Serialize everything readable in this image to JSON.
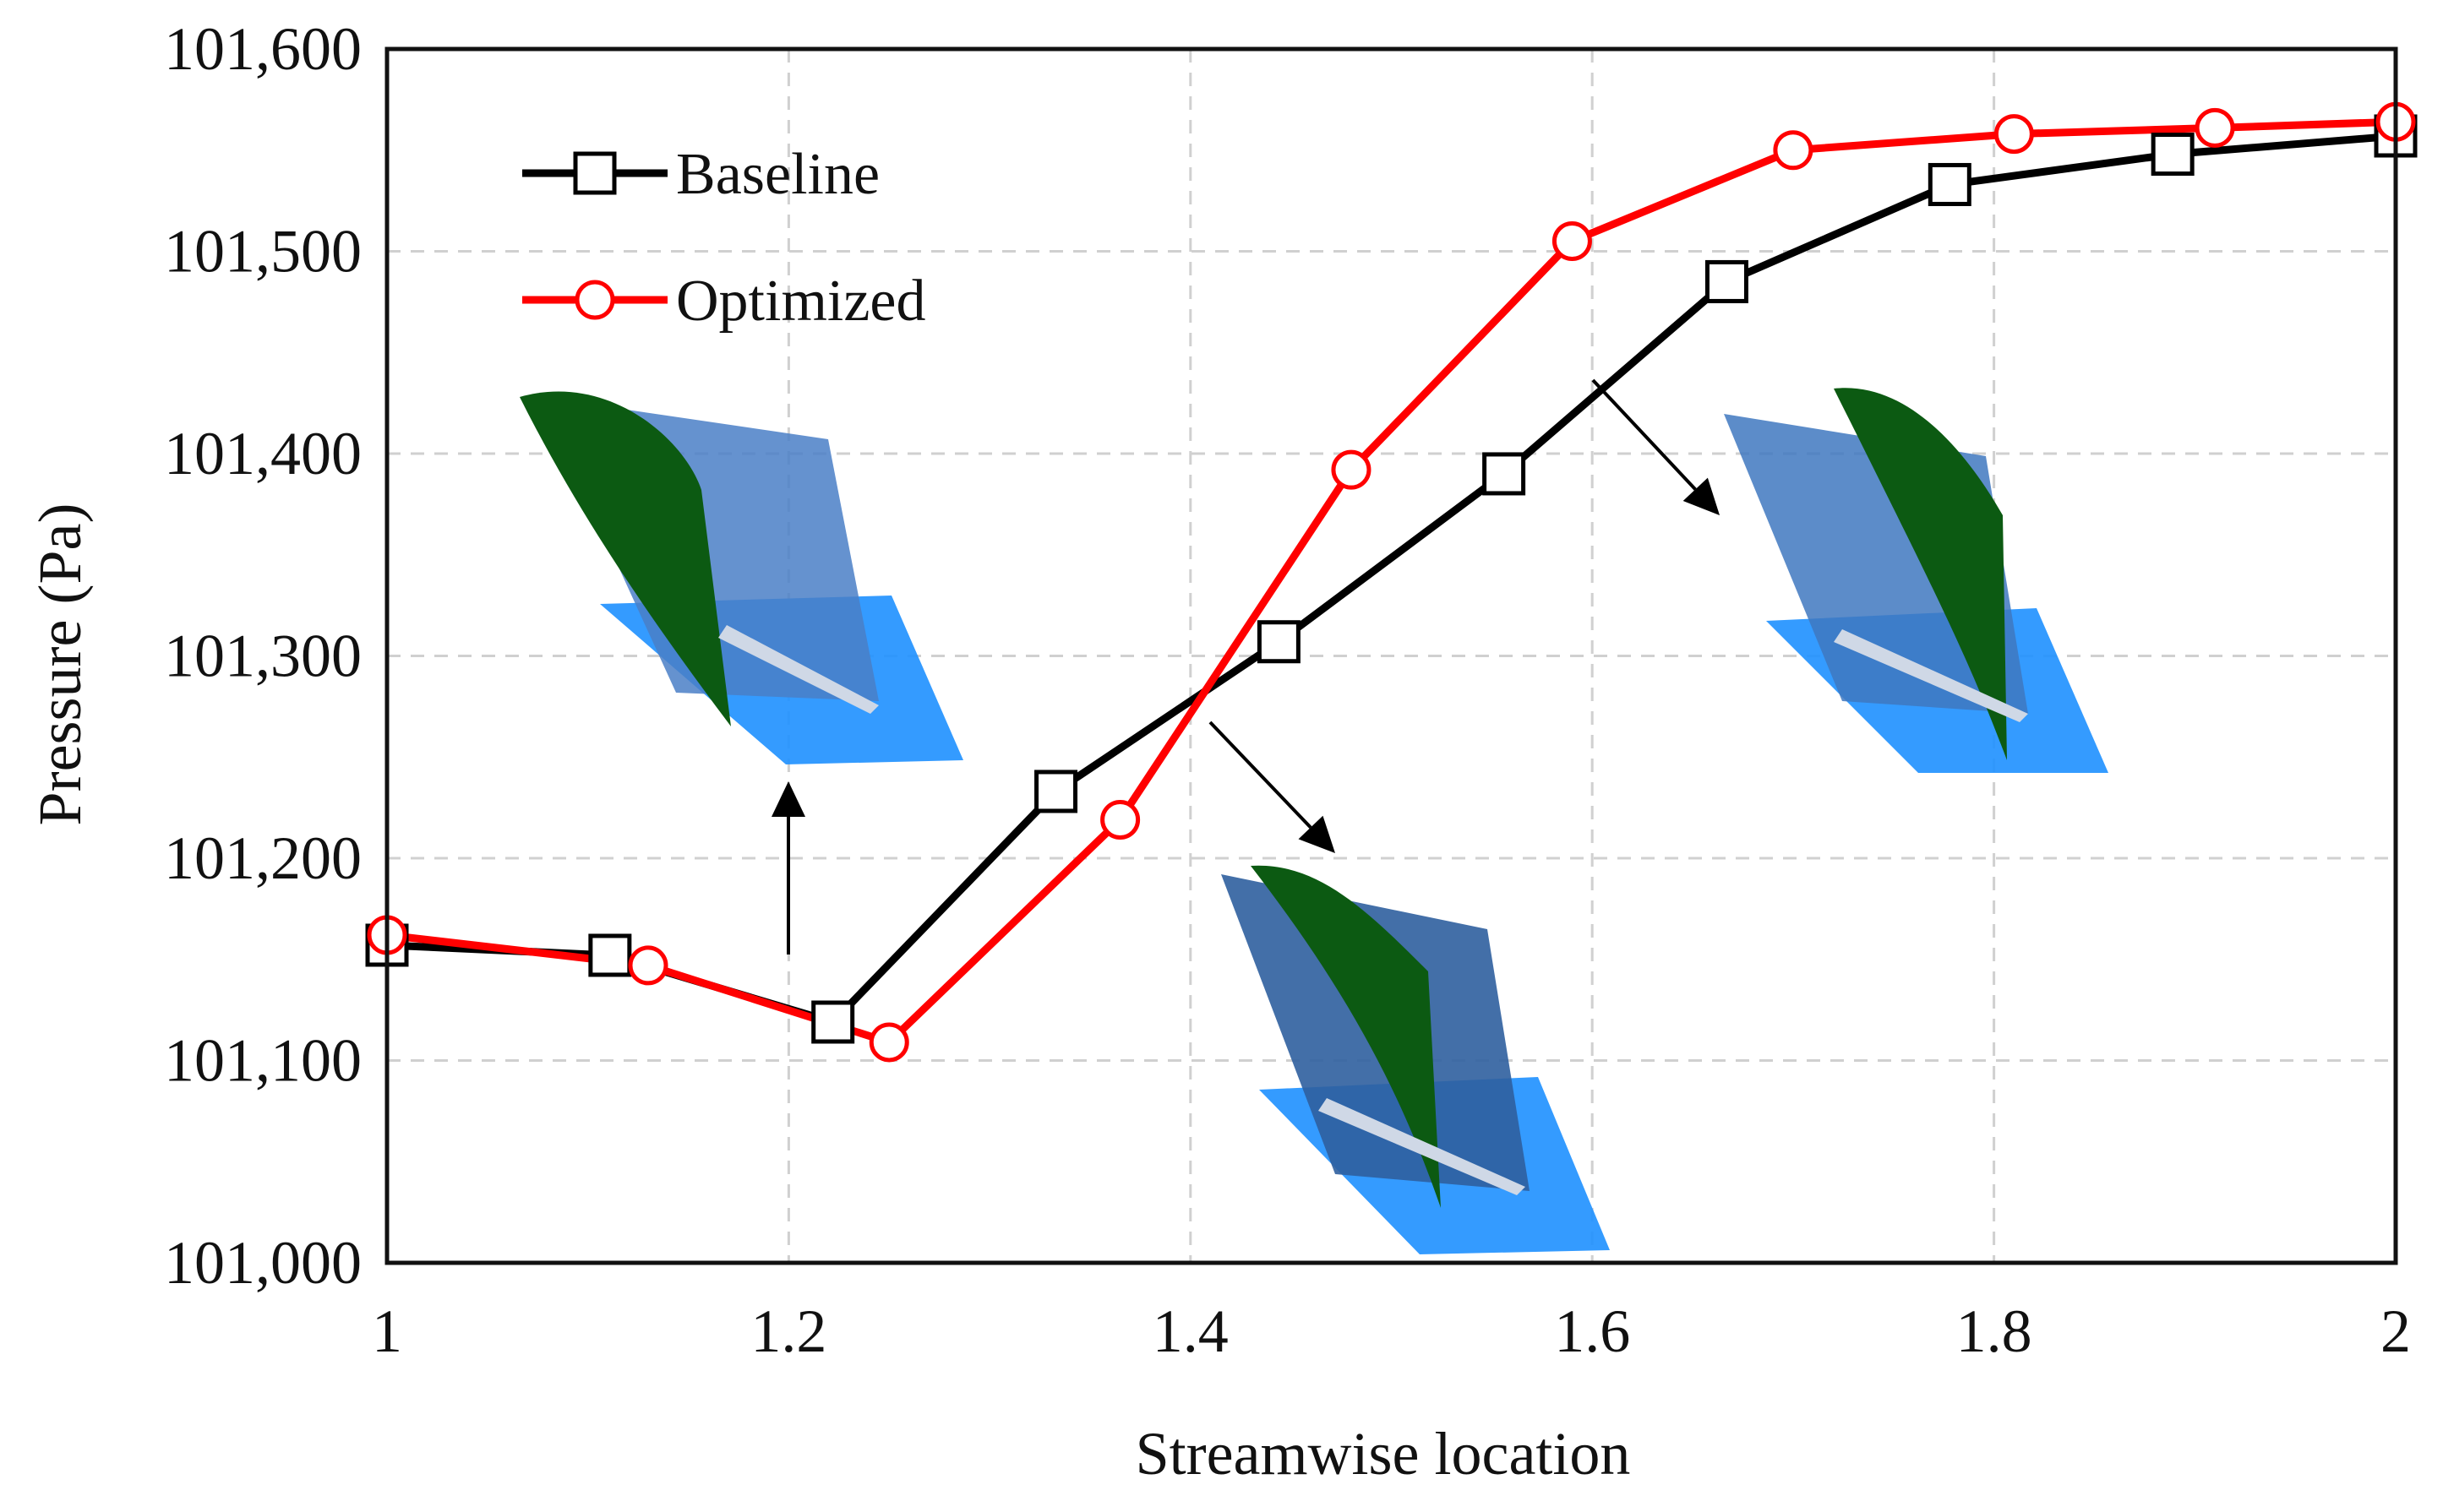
{
  "chart_data": {
    "type": "line",
    "title": "",
    "xlabel": "Streamwise location",
    "ylabel": "Pressure (Pa)",
    "xlim": [
      1,
      2
    ],
    "ylim": [
      101000,
      101600
    ],
    "x_ticks": [
      1,
      1.2,
      1.4,
      1.6,
      1.8,
      2
    ],
    "x_tick_labels": [
      "1",
      "1.2",
      "1.4",
      "1.6",
      "1.8",
      "2"
    ],
    "y_ticks": [
      101000,
      101100,
      101200,
      101300,
      101400,
      101500,
      101600
    ],
    "y_tick_labels": [
      "101,000",
      "101,100",
      "101,200",
      "101,300",
      "101,400",
      "101,500",
      "101,600"
    ],
    "grid": true,
    "legend_position": "top-left",
    "series": [
      {
        "name": "Baseline",
        "color": "#000000",
        "marker": "square",
        "x": [
          1.0,
          1.111,
          1.222,
          1.333,
          1.444,
          1.556,
          1.667,
          1.778,
          1.889,
          2.0
        ],
        "y": [
          101157,
          101152,
          101119,
          101233,
          101307,
          101390,
          101485,
          101533,
          101548,
          101557
        ]
      },
      {
        "name": "Optimized",
        "color": "#ff0000",
        "marker": "circle",
        "x": [
          1.0,
          1.13,
          1.25,
          1.365,
          1.48,
          1.59,
          1.7,
          1.81,
          1.91,
          2.0
        ],
        "y": [
          101162,
          101147,
          101109,
          101219,
          101392,
          101505,
          101550,
          101558,
          101561,
          101564
        ]
      }
    ],
    "annotations": [
      {
        "type": "arrow",
        "name": "arrow-to-blade-inlet",
        "from": [
          1.2,
          101150
        ],
        "direction": "up"
      },
      {
        "type": "arrow",
        "name": "arrow-to-blade-mid",
        "from": [
          1.41,
          101270
        ],
        "direction": "down-right"
      },
      {
        "type": "arrow",
        "name": "arrow-to-blade-outlet",
        "from": [
          1.6,
          101420
        ],
        "direction": "down-right"
      }
    ],
    "insets": [
      "blade-geometry-inlet",
      "blade-geometry-mid",
      "blade-geometry-outlet"
    ]
  }
}
